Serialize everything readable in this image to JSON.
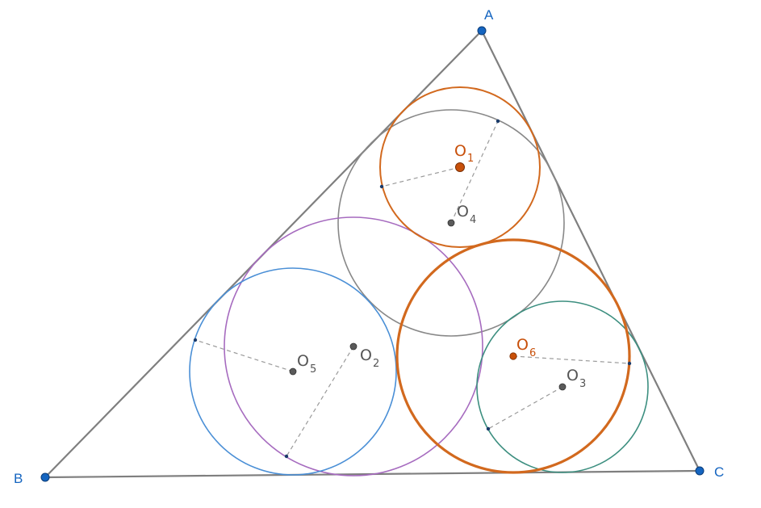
{
  "vertices": {
    "A": {
      "label": "A"
    },
    "B": {
      "label": "B"
    },
    "C": {
      "label": "C"
    }
  },
  "centers": {
    "O1": {
      "base": "O",
      "sub": "1"
    },
    "O2": {
      "base": "O",
      "sub": "2"
    },
    "O3": {
      "base": "O",
      "sub": "3"
    },
    "O4": {
      "base": "O",
      "sub": "4"
    },
    "O5": {
      "base": "O",
      "sub": "5"
    },
    "O6": {
      "base": "O",
      "sub": "6"
    }
  },
  "colors": {
    "triangle": "#7f7f7f",
    "vertex_point": "#1565c0",
    "vertex_label": "#1565c0",
    "circle_O1": "#d2691e",
    "circle_O2": "#a66bbf",
    "circle_O3": "#3d8f80",
    "circle_O4": "#888888",
    "circle_O5": "#4a8fd6",
    "circle_O6": "#d2691e",
    "center_orange": "#c8500a",
    "center_gray": "#5a5a5a",
    "label_orange": "#c8500a",
    "label_gray": "#555555",
    "dashed": "#9a9a9a"
  }
}
